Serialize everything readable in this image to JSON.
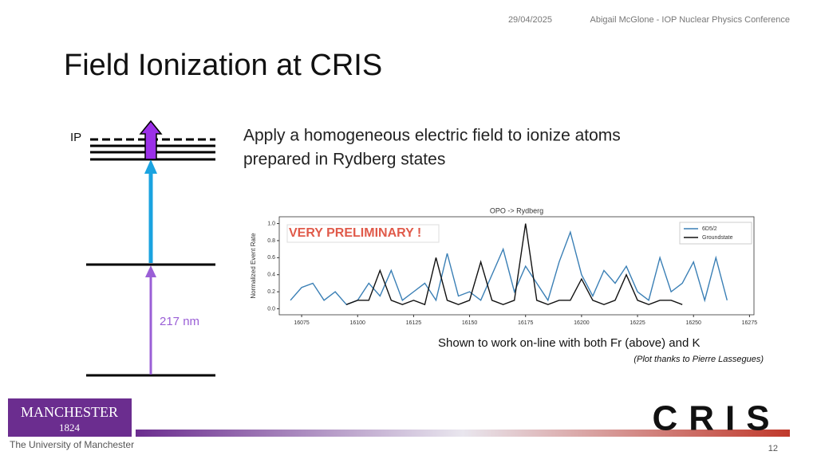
{
  "header": {
    "date": "29/04/2025",
    "author_event": "Abigail McGlone - IOP Nuclear Physics Conference"
  },
  "title": "Field Ionization at CRIS",
  "body": {
    "text_line_1": "Apply a homogeneous electric field to ionize atoms",
    "text_line_2": "prepared in Rydberg states",
    "caption": "Shown to work on-line with both Fr (above) and K",
    "credit": "(Plot thanks to Pierre Lassegues)"
  },
  "diagram": {
    "ip_label": "IP",
    "wavelength_label": "217 nm"
  },
  "chart_data": {
    "type": "line",
    "title": "OPO -> Rydberg",
    "ylabel": "Normalized Event Rate",
    "annotation": "VERY PRELIMINARY !",
    "x": [
      16070,
      16075,
      16080,
      16085,
      16090,
      16095,
      16100,
      16105,
      16110,
      16115,
      16120,
      16125,
      16130,
      16135,
      16140,
      16145,
      16150,
      16155,
      16160,
      16165,
      16170,
      16175,
      16180,
      16185,
      16190,
      16195,
      16200,
      16205,
      16210,
      16215,
      16220,
      16225,
      16230,
      16235,
      16240,
      16245,
      16250,
      16255,
      16260,
      16265
    ],
    "series": [
      {
        "name": "6D5/2",
        "color": "#3a7fb5",
        "values": [
          0.1,
          0.25,
          0.3,
          0.1,
          0.2,
          0.05,
          0.1,
          0.3,
          0.15,
          0.45,
          0.1,
          0.2,
          0.3,
          0.1,
          0.65,
          0.15,
          0.2,
          0.1,
          0.4,
          0.7,
          0.2,
          0.5,
          0.3,
          0.1,
          0.55,
          0.9,
          0.4,
          0.15,
          0.45,
          0.3,
          0.5,
          0.2,
          0.1,
          0.6,
          0.2,
          0.3,
          0.55,
          0.1,
          0.6,
          0.1
        ]
      },
      {
        "name": "Groundstate",
        "color": "#111111",
        "values": [
          null,
          null,
          null,
          null,
          null,
          0.05,
          0.1,
          0.1,
          0.45,
          0.1,
          0.05,
          0.1,
          0.05,
          0.6,
          0.1,
          0.05,
          0.1,
          0.55,
          0.1,
          0.05,
          0.1,
          1.0,
          0.1,
          0.05,
          0.1,
          0.1,
          0.35,
          0.1,
          0.05,
          0.1,
          0.4,
          0.1,
          0.05,
          0.1,
          0.1,
          0.05,
          null,
          null,
          null,
          null
        ]
      }
    ],
    "xlim": [
      16065,
      16277
    ],
    "ylim": [
      -0.07,
      1.08
    ],
    "xticks": [
      16075,
      16100,
      16125,
      16150,
      16175,
      16200,
      16225,
      16250,
      16275
    ],
    "yticks": [
      {
        "value": 0,
        "label": "0.0"
      },
      0.2,
      0.4,
      0.6,
      0.8,
      {
        "value": 1,
        "label": "1.0"
      }
    ],
    "legend": "upper right"
  },
  "logos": {
    "manchester": "MANCHESTER",
    "year": "1824",
    "university": "The University of Manchester",
    "cris": "CRIS"
  },
  "page_number": 12
}
